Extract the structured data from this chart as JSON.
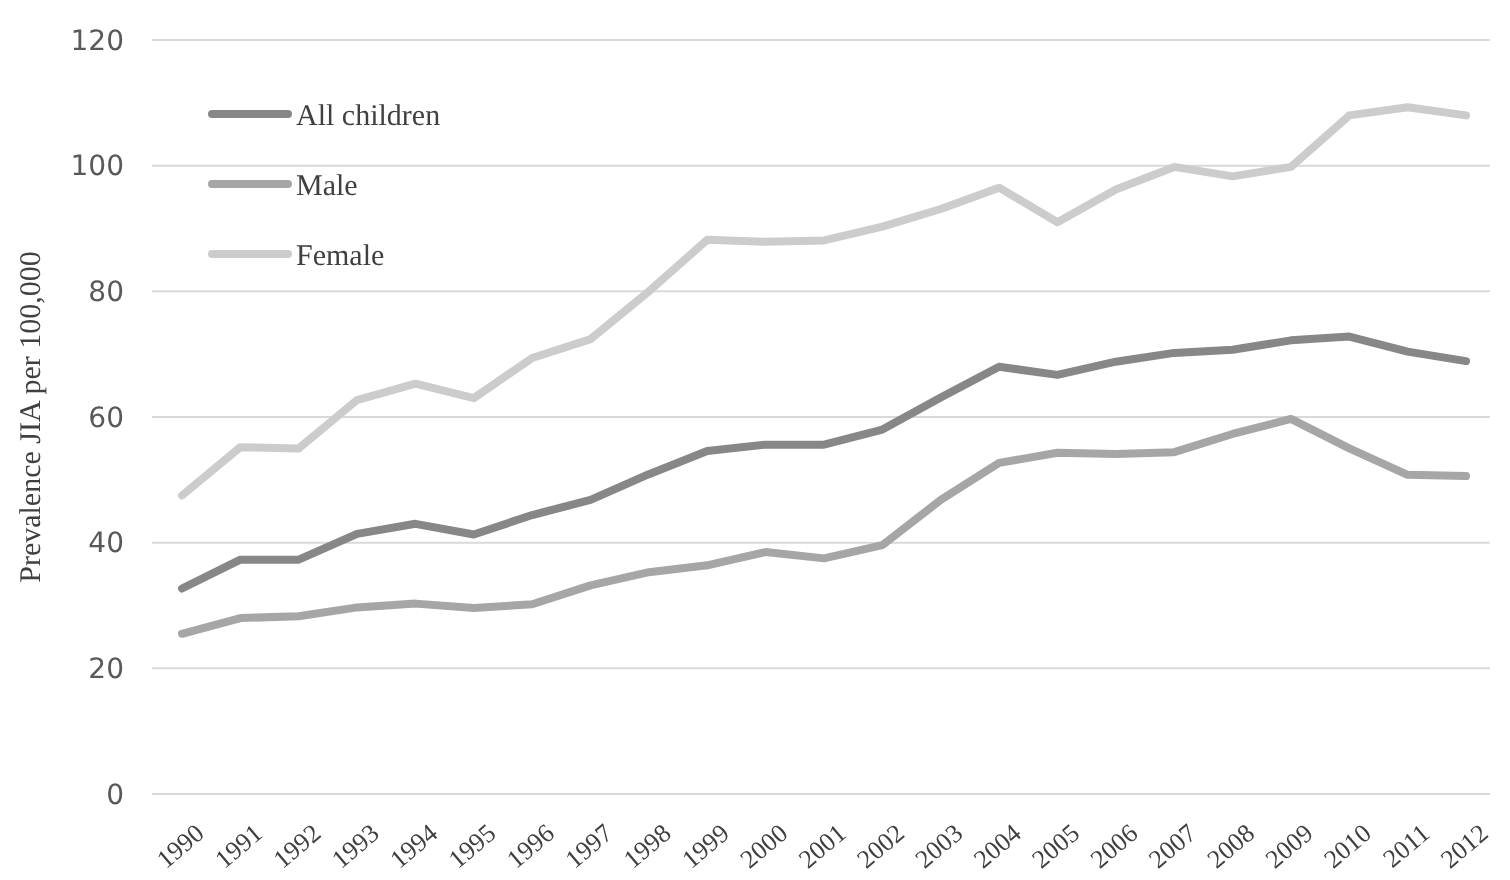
{
  "chart_data": {
    "type": "line",
    "ylabel": "Prevalence JIA per 100,000",
    "categories": [
      "1990",
      "1991",
      "1992",
      "1993",
      "1994",
      "1995",
      "1996",
      "1997",
      "1998",
      "1999",
      "2000",
      "2001",
      "2002",
      "2003",
      "2004",
      "2005",
      "2006",
      "2007",
      "2008",
      "2009",
      "2010",
      "2011",
      "2012"
    ],
    "series": [
      {
        "name": "All children",
        "color": "#878787",
        "values": [
          32.7,
          37.3,
          37.3,
          41.4,
          43,
          41.3,
          44.4,
          46.8,
          50.9,
          54.6,
          55.6,
          55.6,
          58,
          63.1,
          68,
          66.7,
          68.8,
          70.2,
          70.7,
          72.2,
          72.8,
          70.4,
          68.9
        ]
      },
      {
        "name": "Male",
        "color": "#a6a6a6",
        "values": [
          25.5,
          28,
          28.3,
          29.7,
          30.3,
          29.6,
          30.2,
          33.2,
          35.3,
          36.4,
          38.5,
          37.5,
          39.6,
          46.8,
          52.7,
          54.3,
          54.1,
          54.4,
          57.3,
          59.7,
          55,
          50.8,
          50.6
        ]
      },
      {
        "name": "Female",
        "color": "#cccccc",
        "values": [
          47.5,
          55.2,
          55,
          62.7,
          65.3,
          63,
          69.4,
          72.4,
          80,
          88.2,
          87.9,
          88.1,
          90.3,
          93.1,
          96.5,
          91,
          96.2,
          99.8,
          98.3,
          99.8,
          108,
          109.3,
          108
        ]
      }
    ],
    "ylim": [
      0,
      120
    ],
    "yticks": [
      0,
      20,
      40,
      60,
      80,
      100,
      120
    ],
    "grid": "y",
    "legend": "top left",
    "marker": "none",
    "line_style": "solid"
  }
}
